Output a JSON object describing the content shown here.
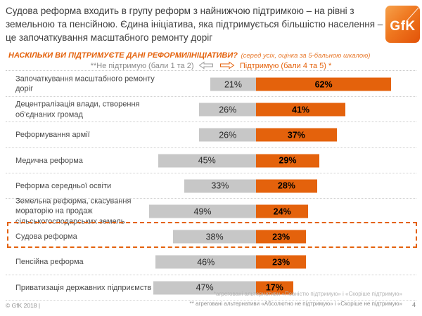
{
  "header": {
    "title": "Судова реформа входить в групу реформ з найнижчою підтримкою – на рівні з земельною та пенсійною. Єдина ініціатива, яка підтримується більшістю населення – це започаткування масштабного ремонту доріг",
    "logo_text": "GfK"
  },
  "question": {
    "text": "НАСКІЛЬКИ ВИ  ПІДТРИМУЄТЕ ДАНІ РЕФОРМИ/ІНІЦІАТИВИ?",
    "note": "(серед усіх, оцінка за 5-бальною шкалою)"
  },
  "legend": {
    "left": "**Не підтримую (бали 1 та 2)",
    "right": "Підтримую (бали 4 та 5) *"
  },
  "chart_data": {
    "type": "bar",
    "orientation": "horizontal-diverging",
    "categories": [
      "Започаткування масштабного ремонту доріг",
      "Децентралізація  влади, створення об'єднаних громад",
      "Реформування армії",
      "Медична реформа",
      "Реформа середньої освіти",
      "Земельна реформа, скасування мораторію на продаж сільськогосподарських земель",
      "Судова реформа",
      "Пенсійна реформа",
      "Приватизація державних підприємств"
    ],
    "series": [
      {
        "name": "Не підтримую (бали 1 та 2)",
        "color": "#c7c7c7",
        "values": [
          21,
          26,
          26,
          45,
          33,
          49,
          38,
          46,
          47
        ]
      },
      {
        "name": "Підтримую (бали 4 та 5)",
        "color": "#e4620c",
        "values": [
          62,
          41,
          37,
          29,
          28,
          24,
          23,
          23,
          17
        ]
      }
    ],
    "value_suffix": "%",
    "highlighted_index": 6,
    "highlighted_category": "Судова реформа",
    "xlim": [
      0,
      100
    ],
    "grid": false,
    "legend_position": "top"
  },
  "footer": {
    "copyright": "© GfK 2018 |",
    "footnote1": "*агреговані альтернативи «Повністю підтримую» і «Скоріше підтримую»",
    "footnote2": "** агреговані альтернативи «Абсолютно не підтримую» і «Скоріше не підтримую»",
    "page": "4"
  },
  "colors": {
    "accent_orange": "#e4620c",
    "bar_gray": "#c7c7c7"
  }
}
